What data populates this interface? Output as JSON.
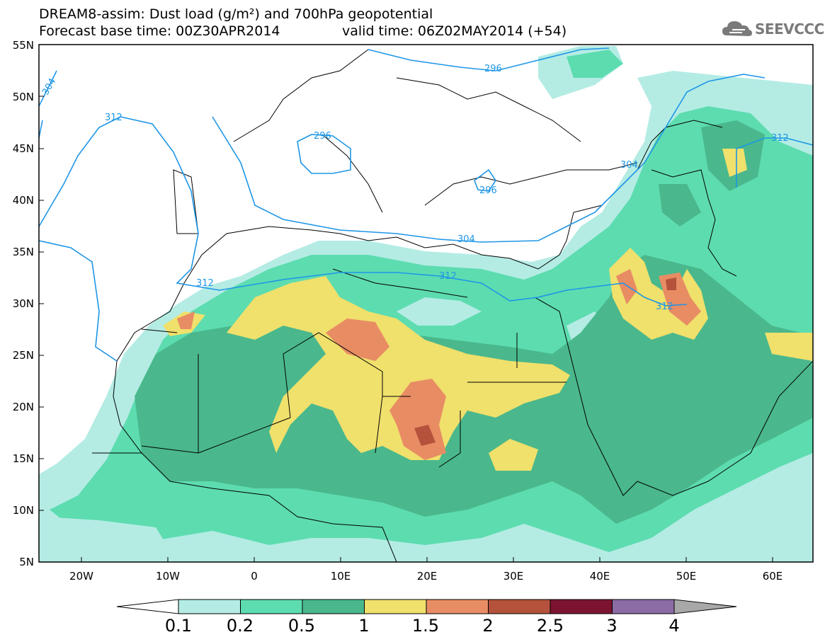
{
  "header": {
    "title_line1": "DREAM8-assim: Dust load (g/m²) and 700hPa geopotential",
    "title_line2": "Forecast base time: 00Z30APR2014",
    "valid_time": "valid time: 06Z02MAY2014 (+54)",
    "logo_text": "SEEVCCC"
  },
  "map": {
    "lat_labels": [
      "55N",
      "50N",
      "45N",
      "40N",
      "35N",
      "30N",
      "25N",
      "20N",
      "15N",
      "10N",
      "5N"
    ],
    "lon_labels": [
      "20W",
      "10W",
      "0",
      "10E",
      "20E",
      "30E",
      "40E",
      "50E",
      "60E"
    ],
    "contour_labels": [
      {
        "text": "304"
      },
      {
        "text": "312"
      },
      {
        "text": "296"
      },
      {
        "text": "296"
      },
      {
        "text": "296"
      },
      {
        "text": "304"
      },
      {
        "text": "304"
      },
      {
        "text": "312"
      },
      {
        "text": "312"
      },
      {
        "text": "312"
      },
      {
        "text": "312"
      }
    ]
  },
  "legend": {
    "tick_labels": [
      "0.1",
      "0.2",
      "0.5",
      "1",
      "1.5",
      "2",
      "2.5",
      "3",
      "4"
    ],
    "colors": [
      "#ffffff",
      "#b4ece4",
      "#5ddcb0",
      "#4ab88c",
      "#f0e06c",
      "#e88c64",
      "#b4523c",
      "#7c1430",
      "#8c6ca4",
      "#a8a8a8"
    ],
    "contour_color": "#1e96e6"
  }
}
